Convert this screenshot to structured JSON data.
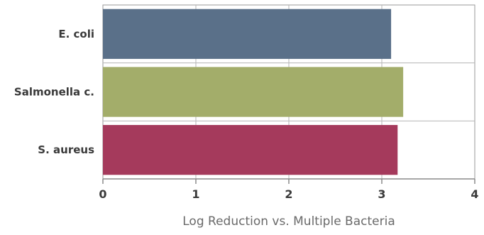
{
  "chart_data": {
    "type": "bar",
    "orientation": "horizontal",
    "categories": [
      "E. coli",
      "Salmonella c.",
      "S. aureus"
    ],
    "values": [
      3.1,
      3.23,
      3.17
    ],
    "colors": [
      "#5a7089",
      "#a3ad6a",
      "#a53a5c"
    ],
    "xlabel": "Log Reduction vs. Multiple Bacteria",
    "xlim": [
      0,
      4
    ],
    "xticks": [
      0,
      1,
      2,
      3,
      4
    ],
    "grid": "vertical",
    "legend": "none"
  }
}
